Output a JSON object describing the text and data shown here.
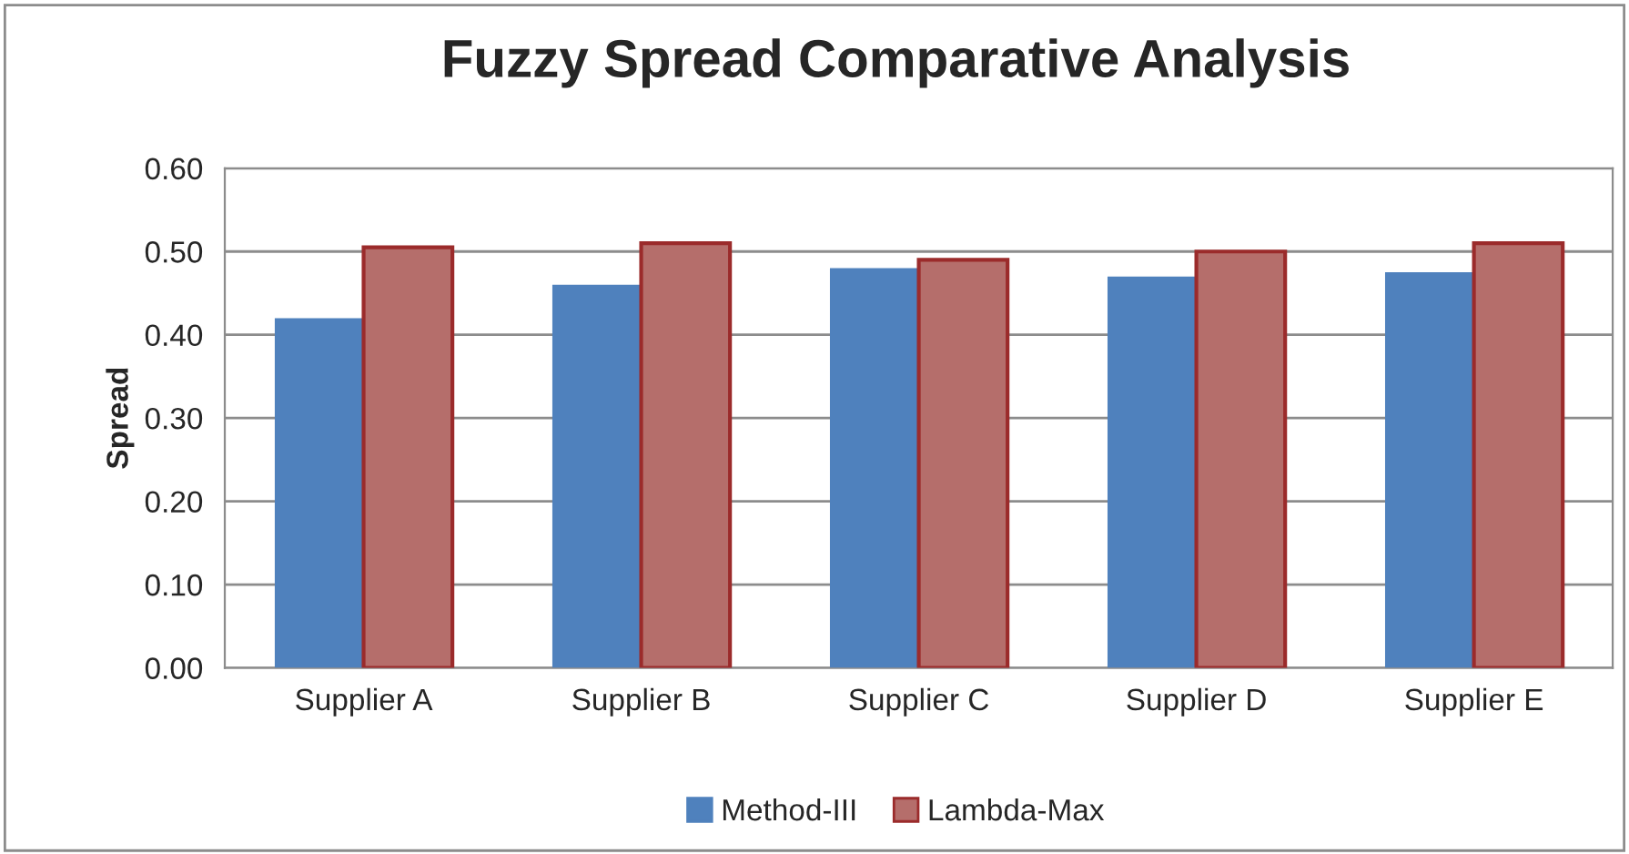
{
  "chart_data": {
    "type": "bar",
    "title": "Fuzzy Spread Comparative Analysis",
    "ylabel": "Spread",
    "categories": [
      "Supplier A",
      "Supplier B",
      "Supplier C",
      "Supplier D",
      "Supplier E"
    ],
    "series": [
      {
        "name": "Method-III",
        "color": "#4f81bd",
        "values": [
          0.42,
          0.46,
          0.48,
          0.47,
          0.475
        ]
      },
      {
        "name": "Lambda-Max",
        "color": "#b56e6b",
        "values": [
          0.505,
          0.51,
          0.49,
          0.5,
          0.51
        ]
      }
    ],
    "ylim": [
      0,
      0.6
    ],
    "yticks": [
      {
        "value": 0,
        "label": "0.00"
      },
      {
        "value": 0.1,
        "label": "0.10"
      },
      {
        "value": 0.2,
        "label": "0.20"
      },
      {
        "value": 0.3,
        "label": "0.30"
      },
      {
        "value": 0.4,
        "label": "0.40"
      },
      {
        "value": 0.5,
        "label": "0.50"
      },
      {
        "value": 0.6,
        "label": "0.60"
      }
    ],
    "grid": "y",
    "legend": "bottom"
  }
}
